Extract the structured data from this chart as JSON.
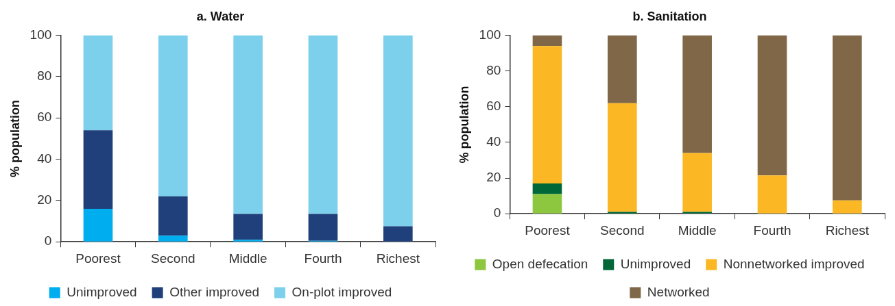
{
  "chart_data": [
    {
      "type": "bar",
      "title": "a. Water",
      "ylabel": "% population",
      "categories": [
        "Poorest",
        "Second",
        "Middle",
        "Fourth",
        "Richest"
      ],
      "stacked": true,
      "ylim": [
        0,
        100
      ],
      "yticks": [
        0,
        20,
        40,
        60,
        80,
        100
      ],
      "grid": false,
      "legend": "bottom",
      "series": [
        {
          "name": "Unimproved",
          "color": "#00aeef",
          "values": [
            16,
            3,
            1,
            0.5,
            0
          ]
        },
        {
          "name": "Other improved",
          "color": "#1f407a",
          "values": [
            38,
            19,
            12.5,
            13,
            7.5
          ]
        },
        {
          "name": "On-plot improved",
          "color": "#7dd0ec",
          "values": [
            46,
            78,
            86.5,
            86.5,
            92.5
          ]
        }
      ]
    },
    {
      "type": "bar",
      "title": "b. Sanitation",
      "ylabel": "% population",
      "categories": [
        "Poorest",
        "Second",
        "Middle",
        "Fourth",
        "Richest"
      ],
      "stacked": true,
      "ylim": [
        0,
        100
      ],
      "yticks": [
        0,
        20,
        40,
        60,
        80,
        100
      ],
      "grid": false,
      "legend": "bottom",
      "series": [
        {
          "name": "Open defecation",
          "color": "#8dc63f",
          "values": [
            11,
            0,
            0,
            0,
            0
          ]
        },
        {
          "name": "Unimproved",
          "color": "#006838",
          "values": [
            6,
            1,
            1,
            0,
            0
          ]
        },
        {
          "name": "Nonnetworked improved",
          "color": "#fbb824",
          "values": [
            77,
            61,
            33,
            21.5,
            7.5
          ]
        },
        {
          "name": "Networked",
          "color": "#7f6747",
          "values": [
            6,
            38,
            66,
            78.5,
            92.5
          ]
        }
      ]
    }
  ]
}
